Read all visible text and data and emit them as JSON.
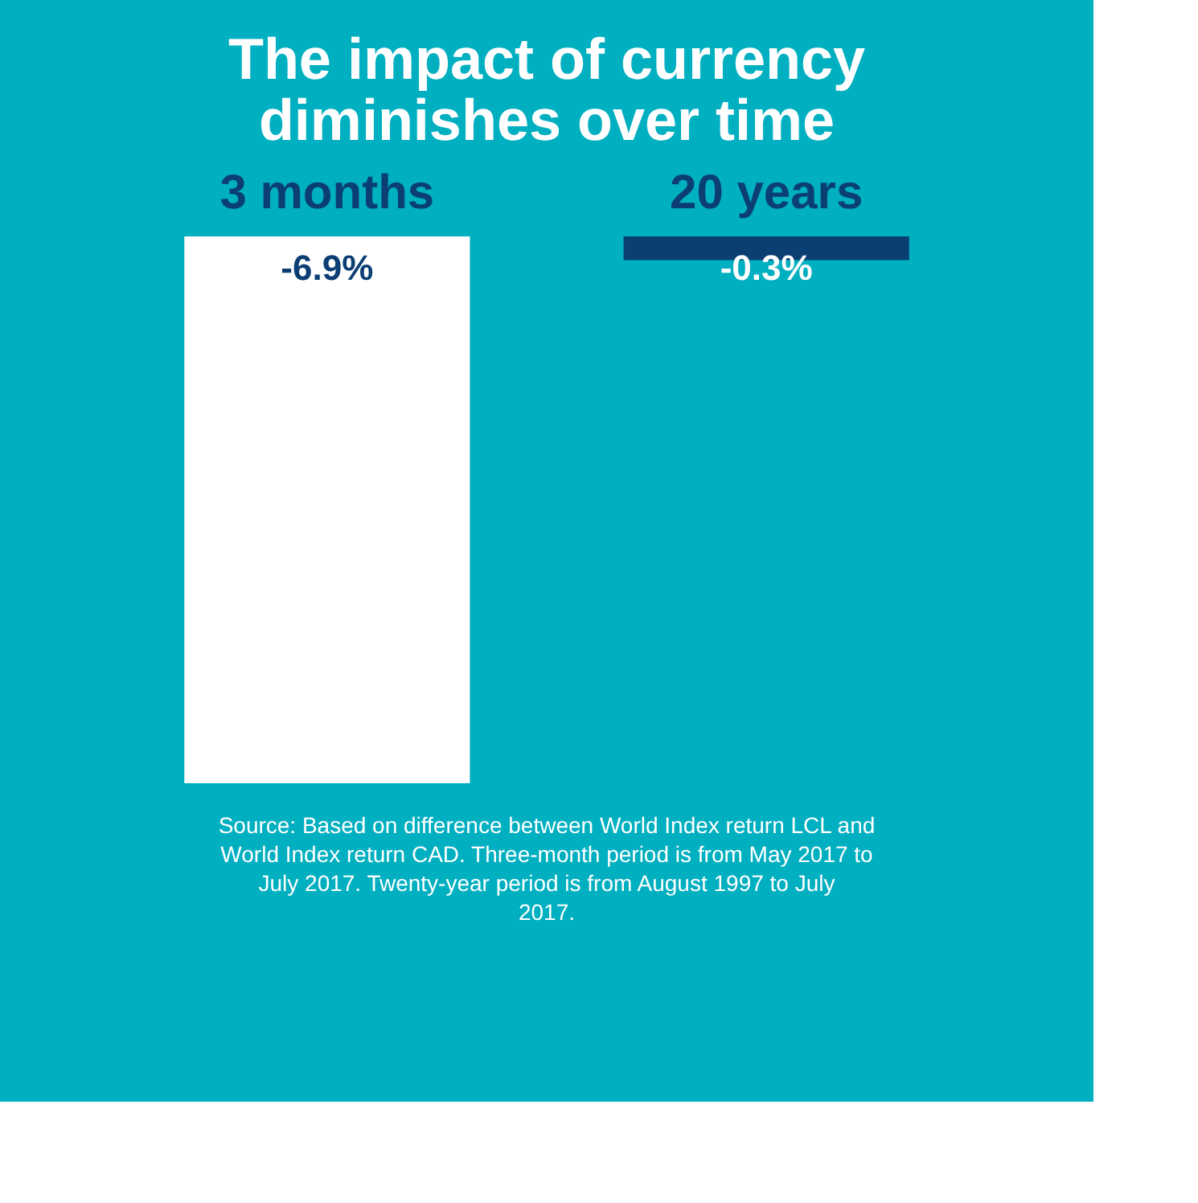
{
  "chart_data": {
    "type": "bar",
    "title": "The impact of currency diminishes over time",
    "categories": [
      "3 months",
      "20 years"
    ],
    "values": [
      -6.9,
      -0.3
    ],
    "colors": [
      "#ffffff",
      "#0b3f73"
    ],
    "value_labels": [
      "-6.9%",
      "-0.3%"
    ],
    "annotations": [
      "Source: Based on difference between World Index return LCL and World Index return CAD. Three-month period is from May 2017 to July 2017. Twenty-year period is from August 1997 to July 2017."
    ]
  }
}
